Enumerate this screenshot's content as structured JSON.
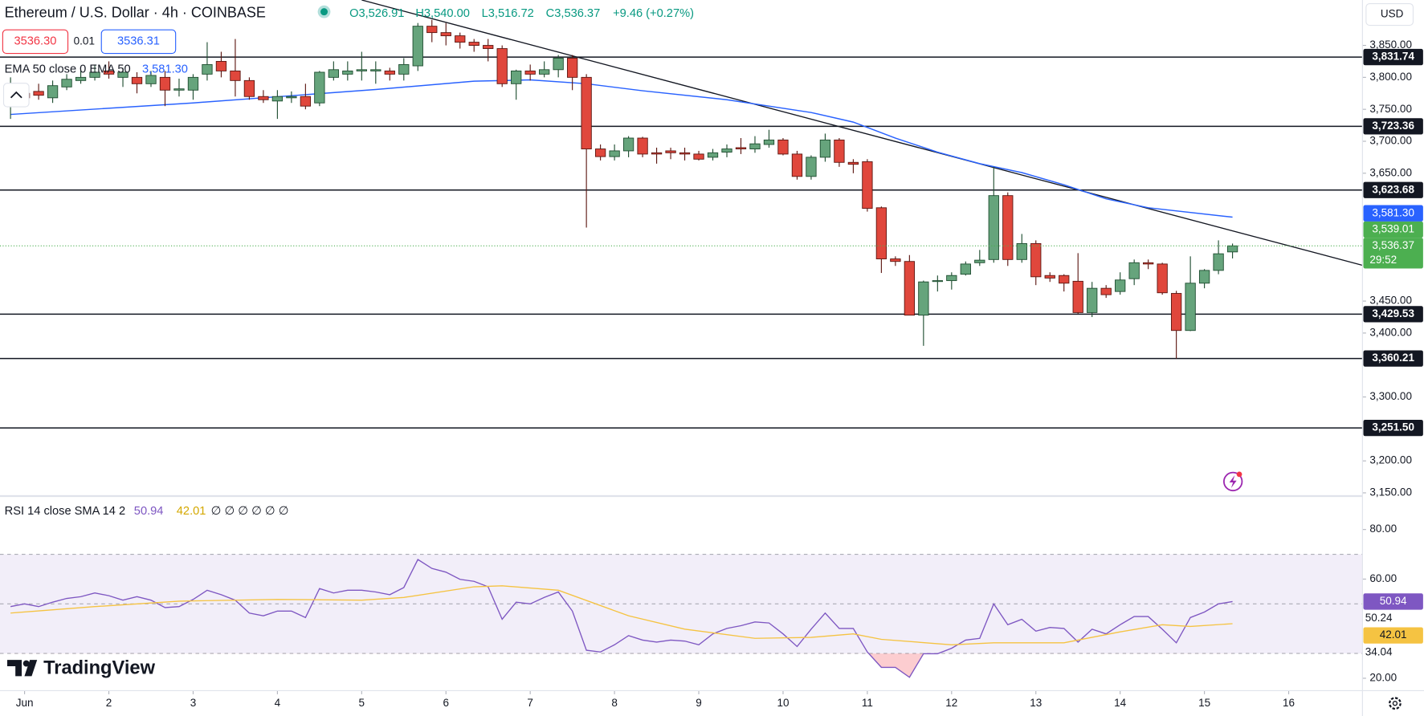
{
  "header": {
    "symbol": "Ethereum / U.S. Dollar · 4h · COINBASE",
    "open": "O3,526.91",
    "high": "H3,540.00",
    "low": "L3,516.72",
    "close": "C3,536.37",
    "change": "+9.46 (+0.27%)",
    "sell": "3536.30",
    "spread": "0.01",
    "buy": "3536.31",
    "currency": "USD",
    "countdown": "29:52",
    "brand": "TradingView"
  },
  "chart_data": [
    {
      "type": "candlestick",
      "x": [
        -4,
        0,
        4,
        8,
        12,
        16,
        20,
        24,
        28,
        32,
        36,
        40,
        44,
        48,
        52,
        56,
        60,
        64,
        68,
        72,
        76,
        80,
        84,
        88,
        92,
        96,
        100,
        104,
        108,
        112,
        116,
        120,
        124,
        128,
        132,
        136,
        140,
        144,
        148,
        152,
        156,
        160,
        164,
        168,
        172,
        176,
        180,
        184,
        188,
        192,
        196,
        200,
        204,
        208,
        212,
        216,
        220,
        224,
        228,
        232,
        236,
        240,
        244,
        248,
        252,
        256,
        260,
        264,
        268,
        272,
        276,
        280,
        284,
        288,
        292,
        296,
        300,
        304,
        308,
        312,
        316,
        320,
        324,
        328,
        332,
        336,
        340,
        344
      ],
      "open": [
        3758,
        3775,
        3778,
        3768,
        3785,
        3795,
        3800,
        3810,
        3800,
        3800,
        3790,
        3800,
        3780,
        3780,
        3805,
        3825,
        3810,
        3795,
        3770,
        3763,
        3768,
        3770,
        3760,
        3800,
        3805,
        3810,
        3810,
        3810,
        3805,
        3818,
        3880,
        3870,
        3865,
        3855,
        3850,
        3845,
        3790,
        3810,
        3805,
        3812,
        3830,
        3800,
        3688,
        3676,
        3685,
        3705,
        3682,
        3685,
        3682,
        3680,
        3675,
        3683,
        3690,
        3688,
        3695,
        3702,
        3680,
        3645,
        3675,
        3702,
        3667,
        3668,
        3596,
        3516,
        3512,
        3428,
        3482,
        3482,
        3492,
        3510,
        3515,
        3615,
        3515,
        3540,
        3490,
        3490,
        3481,
        3432,
        3470,
        3465,
        3485,
        3510,
        3508,
        3462,
        3404,
        3478,
        3498,
        3526.91
      ],
      "high": [
        3800,
        3790,
        3790,
        3795,
        3805,
        3812,
        3820,
        3825,
        3815,
        3808,
        3810,
        3810,
        3798,
        3805,
        3855,
        3840,
        3860,
        3800,
        3780,
        3780,
        3778,
        3790,
        3810,
        3825,
        3825,
        3840,
        3825,
        3815,
        3830,
        3885,
        3890,
        3885,
        3870,
        3860,
        3860,
        3850,
        3812,
        3820,
        3825,
        3835,
        3835,
        3805,
        3695,
        3695,
        3708,
        3707,
        3690,
        3690,
        3690,
        3685,
        3688,
        3695,
        3705,
        3708,
        3718,
        3705,
        3685,
        3678,
        3712,
        3705,
        3672,
        3672,
        3598,
        3520,
        3522,
        3482,
        3490,
        3495,
        3512,
        3530,
        3660,
        3620,
        3555,
        3545,
        3495,
        3492,
        3525,
        3480,
        3475,
        3495,
        3515,
        3515,
        3510,
        3466,
        3520,
        3500,
        3545,
        3540
      ],
      "low": [
        3735,
        3760,
        3765,
        3760,
        3780,
        3790,
        3795,
        3798,
        3785,
        3775,
        3785,
        3755,
        3770,
        3765,
        3795,
        3800,
        3770,
        3765,
        3760,
        3735,
        3760,
        3750,
        3755,
        3795,
        3795,
        3795,
        3790,
        3795,
        3795,
        3810,
        3855,
        3850,
        3845,
        3840,
        3825,
        3785,
        3765,
        3795,
        3800,
        3800,
        3780,
        3565,
        3670,
        3670,
        3675,
        3675,
        3665,
        3672,
        3670,
        3670,
        3670,
        3675,
        3680,
        3682,
        3690,
        3678,
        3640,
        3640,
        3668,
        3660,
        3650,
        3590,
        3494,
        3505,
        3428,
        3380,
        3465,
        3468,
        3490,
        3505,
        3510,
        3505,
        3510,
        3475,
        3480,
        3465,
        3430,
        3425,
        3455,
        3460,
        3475,
        3500,
        3460,
        3360,
        3403,
        3470,
        3492,
        3516.72
      ],
      "close": [
        3775,
        3768,
        3772,
        3787,
        3797,
        3800,
        3808,
        3805,
        3808,
        3790,
        3803,
        3780,
        3782,
        3800,
        3820,
        3810,
        3795,
        3770,
        3765,
        3770,
        3770,
        3755,
        3808,
        3812,
        3810,
        3812,
        3812,
        3805,
        3820,
        3880,
        3870,
        3865,
        3855,
        3850,
        3845,
        3790,
        3810,
        3805,
        3812,
        3830,
        3800,
        3688,
        3676,
        3685,
        3705,
        3680,
        3680,
        3682,
        3680,
        3672,
        3682,
        3688,
        3688,
        3696,
        3702,
        3680,
        3645,
        3675,
        3702,
        3667,
        3664,
        3595,
        3516,
        3512,
        3428,
        3480,
        3482,
        3490,
        3508,
        3514,
        3615,
        3515,
        3540,
        3488,
        3486,
        3478,
        3432,
        3470,
        3460,
        3483,
        3510,
        3508,
        3463,
        3404,
        3478,
        3498,
        3524,
        3536.37
      ],
      "up_color": "#66a47c",
      "down_color": "#e0473c",
      "current_label": "3,536.37",
      "current_color": "#4caf50",
      "xlim": [
        -7,
        381
      ],
      "xticks": [
        {
          "value": 0,
          "label": "Jun"
        },
        {
          "value": 24,
          "label": "2"
        },
        {
          "value": 48,
          "label": "3"
        },
        {
          "value": 72,
          "label": "4"
        },
        {
          "value": 96,
          "label": "5"
        },
        {
          "value": 120,
          "label": "6"
        },
        {
          "value": 144,
          "label": "7"
        },
        {
          "value": 168,
          "label": "8"
        },
        {
          "value": 192,
          "label": "9"
        },
        {
          "value": 216,
          "label": "10"
        },
        {
          "value": 240,
          "label": "11"
        },
        {
          "value": 264,
          "label": "12"
        },
        {
          "value": 288,
          "label": "13"
        },
        {
          "value": 312,
          "label": "14"
        },
        {
          "value": 336,
          "label": "15"
        },
        {
          "value": 360,
          "label": "16"
        }
      ],
      "ylim": [
        3145,
        3921
      ],
      "yticks": [
        {
          "value": 3850,
          "label": "3,850.00"
        },
        {
          "value": 3800,
          "label": "3,800.00"
        },
        {
          "value": 3750,
          "label": "3,750.00"
        },
        {
          "value": 3700,
          "label": "3,700.00"
        },
        {
          "value": 3650,
          "label": "3,650.00"
        },
        {
          "value": 3450,
          "label": "3,450.00"
        },
        {
          "value": 3400,
          "label": "3,400.00"
        },
        {
          "value": 3300,
          "label": "3,300.00"
        },
        {
          "value": 3200,
          "label": "3,200.00"
        },
        {
          "value": 3150,
          "label": "3,150.00"
        }
      ],
      "grid": false,
      "levels": [
        {
          "value": 3831.74,
          "label": "3,831.74"
        },
        {
          "value": 3723.36,
          "label": "3,723.36"
        },
        {
          "value": 3623.68,
          "label": "3,623.68"
        },
        {
          "value": 3429.53,
          "label": "3,429.53"
        },
        {
          "value": 3360.21,
          "label": "3,360.21"
        },
        {
          "value": 3251.5,
          "label": "3,251.50"
        }
      ],
      "axis_labels": [
        {
          "value": 3539.01,
          "label": "3,539.01",
          "color": "#4caf50"
        }
      ],
      "trendline": {
        "x": [
          96,
          381
        ],
        "values": [
          3921,
          3506
        ],
        "color": "#131722"
      },
      "series": [
        {
          "name": "EMA 50 close 0 EMA 50",
          "color": "#2962ff",
          "x": [
            -4,
            48,
            100,
            128,
            144,
            160,
            176,
            200,
            224,
            236,
            248,
            260,
            272,
            284,
            296,
            308,
            320,
            344
          ],
          "values": [
            3742,
            3760,
            3781,
            3794,
            3796,
            3790,
            3779,
            3765,
            3745,
            3730,
            3705,
            3683,
            3665,
            3651,
            3632,
            3610,
            3596,
            3581.3
          ],
          "value_label": "3,581.30"
        }
      ]
    },
    {
      "type": "line",
      "title": "RSI 14 close SMA 14 2",
      "x": [
        -4,
        0,
        4,
        8,
        12,
        16,
        20,
        24,
        28,
        32,
        36,
        40,
        44,
        48,
        52,
        56,
        60,
        64,
        68,
        72,
        76,
        80,
        84,
        88,
        92,
        96,
        100,
        104,
        108,
        112,
        116,
        120,
        124,
        128,
        132,
        136,
        140,
        144,
        148,
        152,
        156,
        160,
        164,
        168,
        172,
        176,
        180,
        184,
        188,
        192,
        196,
        200,
        204,
        208,
        212,
        216,
        220,
        224,
        228,
        232,
        236,
        240,
        244,
        248,
        252,
        256,
        260,
        264,
        268,
        272,
        276,
        280,
        284,
        288,
        292,
        296,
        300,
        304,
        308,
        312,
        316,
        320,
        324,
        328,
        332,
        336,
        340,
        344
      ],
      "ylim": [
        15,
        93.5
      ],
      "yticks": [
        {
          "value": 80,
          "label": "80.00"
        },
        {
          "value": 60,
          "label": "60.00"
        },
        {
          "value": 20,
          "label": "20.00"
        }
      ],
      "bands": [
        70,
        50,
        30
      ],
      "band_color": "#7e57c2",
      "oversold_color": "#f23645",
      "series": [
        {
          "color": "#7e57c2",
          "values": [
            48.9,
            50.0,
            48.9,
            50.7,
            52.2,
            52.9,
            54.4,
            53.3,
            51.5,
            52.9,
            51.5,
            48.5,
            48.9,
            51.8,
            55.5,
            53.7,
            51.5,
            46.3,
            45.2,
            47.1,
            47.1,
            44.5,
            56.2,
            54.4,
            55.5,
            55.5,
            54.8,
            53.7,
            56.6,
            67.9,
            64.3,
            62.8,
            59.9,
            59.1,
            56.9,
            43.8,
            50.7,
            50.0,
            52.6,
            54.8,
            47.1,
            31.3,
            30.6,
            33.5,
            37.2,
            35.4,
            34.6,
            35.4,
            35.0,
            33.5,
            37.9,
            40.1,
            41.2,
            42.7,
            42.3,
            37.9,
            32.8,
            39.8,
            46.3,
            40.1,
            40.1,
            30.6,
            24.4,
            24.4,
            20.4,
            29.9,
            29.9,
            32.1,
            35.4,
            36.1,
            50.0,
            41.6,
            43.8,
            39.0,
            40.5,
            40.1,
            34.6,
            39.8,
            37.9,
            41.6,
            44.9,
            44.9,
            39.8,
            34.3,
            44.5,
            46.7,
            50.0,
            50.94
          ],
          "value_label": "50.94"
        },
        {
          "color": "#f5c342",
          "x": [
            -4,
            20,
            44,
            72,
            96,
            108,
            128,
            136,
            152,
            172,
            188,
            208,
            224,
            236,
            244,
            264,
            276,
            296,
            312,
            324,
            332,
            344
          ],
          "values": [
            46.3,
            48.9,
            51.1,
            51.8,
            51.5,
            52.6,
            56.9,
            57.3,
            55.5,
            45.2,
            39.8,
            36.1,
            36.5,
            37.9,
            35.7,
            33.5,
            34.3,
            34.3,
            38.7,
            41.6,
            40.9,
            42.01
          ],
          "value_label": "42.01"
        }
      ],
      "legend_extra": "∅ ∅ ∅ ∅ ∅ ∅",
      "axis_notes": [
        "50.24",
        "34.04"
      ]
    }
  ]
}
